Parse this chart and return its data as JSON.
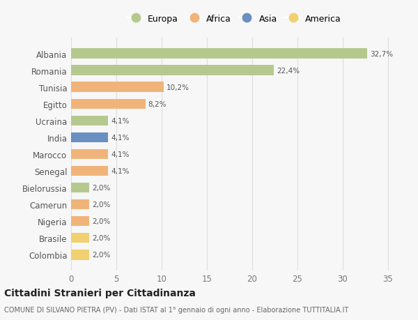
{
  "categories": [
    "Albania",
    "Romania",
    "Tunisia",
    "Egitto",
    "Ucraina",
    "India",
    "Marocco",
    "Senegal",
    "Bielorussia",
    "Camerun",
    "Nigeria",
    "Brasile",
    "Colombia"
  ],
  "values": [
    32.7,
    22.4,
    10.2,
    8.2,
    4.1,
    4.1,
    4.1,
    4.1,
    2.0,
    2.0,
    2.0,
    2.0,
    2.0
  ],
  "labels": [
    "32,7%",
    "22,4%",
    "10,2%",
    "8,2%",
    "4,1%",
    "4,1%",
    "4,1%",
    "4,1%",
    "2,0%",
    "2,0%",
    "2,0%",
    "2,0%",
    "2,0%"
  ],
  "continents": [
    "Europa",
    "Europa",
    "Africa",
    "Africa",
    "Europa",
    "Asia",
    "Africa",
    "Africa",
    "Europa",
    "Africa",
    "Africa",
    "America",
    "America"
  ],
  "colors": {
    "Europa": "#b5c98e",
    "Africa": "#f0b47a",
    "Asia": "#6a8fc2",
    "America": "#f0d070"
  },
  "legend_order": [
    "Europa",
    "Africa",
    "Asia",
    "America"
  ],
  "title": "Cittadini Stranieri per Cittadinanza",
  "subtitle": "COMUNE DI SILVANO PIETRA (PV) - Dati ISTAT al 1° gennaio di ogni anno - Elaborazione TUTTITALIA.IT",
  "xlim": [
    0,
    36
  ],
  "xticks": [
    0,
    5,
    10,
    15,
    20,
    25,
    30,
    35
  ],
  "bg_color": "#f7f7f7",
  "grid_color": "#dddddd",
  "bar_height": 0.6
}
